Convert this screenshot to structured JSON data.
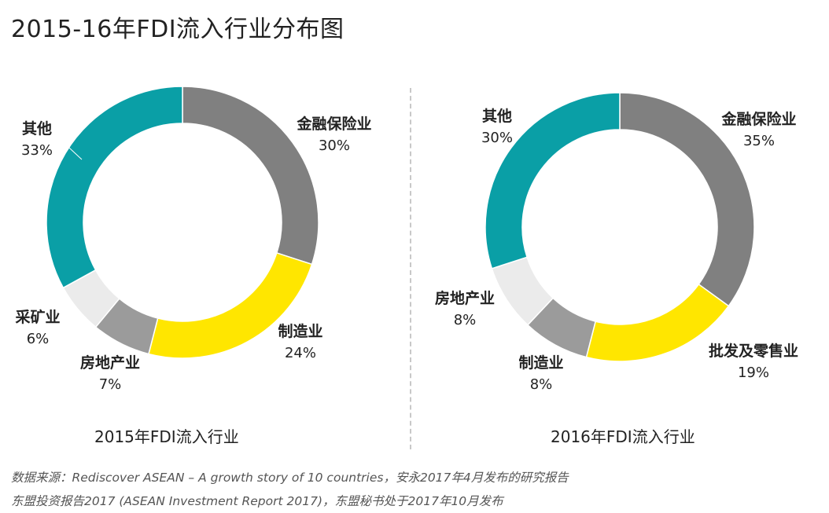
{
  "title": "2015-16年FDI流入行业分布图",
  "chart_data": [
    {
      "type": "pie",
      "subtitle": "2015年FDI流入行业",
      "slices": [
        {
          "name": "金融保险业",
          "value": 30,
          "label": "30%",
          "color": "#808080"
        },
        {
          "name": "制造业",
          "value": 24,
          "label": "24%",
          "color": "#ffe600"
        },
        {
          "name": "房地产业",
          "value": 7,
          "label": "7%",
          "color": "#9b9b9b"
        },
        {
          "name": "采矿业",
          "value": 6,
          "label": "6%",
          "color": "#ebebeb"
        },
        {
          "name": "其他",
          "value": 33,
          "label": "33%",
          "color": "#0a9fa6"
        }
      ]
    },
    {
      "type": "pie",
      "subtitle": "2016年FDI流入行业",
      "slices": [
        {
          "name": "金融保险业",
          "value": 35,
          "label": "35%",
          "color": "#808080"
        },
        {
          "name": "批发及零售业",
          "value": 19,
          "label": "19%",
          "color": "#ffe600"
        },
        {
          "name": "制造业",
          "value": 8,
          "label": "8%",
          "color": "#9b9b9b"
        },
        {
          "name": "房地产业",
          "value": 8,
          "label": "8%",
          "color": "#ebebeb"
        },
        {
          "name": "其他",
          "value": 30,
          "label": "30%",
          "color": "#0a9fa6"
        }
      ]
    }
  ],
  "footer": {
    "line1": "数据来源：Rediscover ASEAN – A growth story of 10 countries，安永2017年4月发布的研究报告",
    "line2": "东盟投资报告2017 (ASEAN Investment Report 2017)，东盟秘书处于2017年10月发布"
  }
}
